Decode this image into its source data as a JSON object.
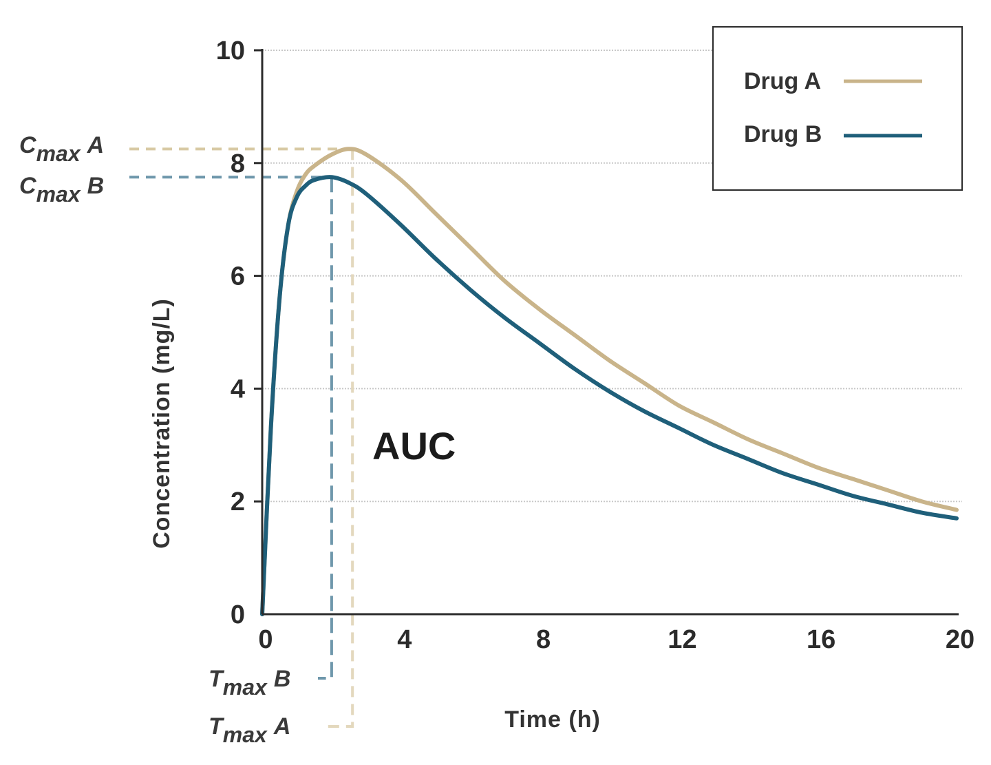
{
  "chart_data": {
    "type": "line",
    "title": "",
    "xlabel": "Time (h)",
    "ylabel": "Concentration (mg/L)",
    "xlim": [
      0,
      20
    ],
    "ylim": [
      0,
      10
    ],
    "xticks": [
      "0",
      "4",
      "8",
      "12",
      "16",
      "20"
    ],
    "yticks": [
      "0",
      "2",
      "4",
      "6",
      "8",
      "10"
    ],
    "grid": "horizontal dotted",
    "legend_position": "top-right",
    "series": [
      {
        "name": "Drug A",
        "color": "#c9b48a",
        "x": [
          0,
          0.25,
          0.5,
          0.75,
          1,
          1.25,
          1.5,
          2,
          2.5,
          3,
          4,
          5,
          6,
          7,
          8,
          9,
          10,
          11,
          12,
          13,
          14,
          15,
          16,
          17,
          18,
          19,
          20
        ],
        "y": [
          0,
          3.3,
          5.6,
          6.9,
          7.5,
          7.8,
          7.95,
          8.15,
          8.25,
          8.15,
          7.7,
          7.1,
          6.5,
          5.9,
          5.4,
          4.95,
          4.5,
          4.1,
          3.7,
          3.4,
          3.1,
          2.85,
          2.6,
          2.4,
          2.2,
          2.0,
          1.85
        ]
      },
      {
        "name": "Drug B",
        "color": "#1f5f7a",
        "x": [
          0,
          0.25,
          0.5,
          0.75,
          1,
          1.25,
          1.5,
          2,
          2.5,
          3,
          4,
          5,
          6,
          7,
          8,
          9,
          10,
          11,
          12,
          13,
          14,
          15,
          16,
          17,
          18,
          19,
          20
        ],
        "y": [
          0,
          3.3,
          5.6,
          6.9,
          7.4,
          7.6,
          7.7,
          7.75,
          7.65,
          7.45,
          6.9,
          6.3,
          5.75,
          5.25,
          4.8,
          4.35,
          3.95,
          3.6,
          3.3,
          3.0,
          2.75,
          2.5,
          2.3,
          2.1,
          1.95,
          1.8,
          1.7
        ]
      }
    ],
    "annotations": {
      "cmax_a": {
        "main": "C",
        "sub": "max",
        "suffix": "A",
        "y": 8.25,
        "color": "#d8c9a4"
      },
      "cmax_b": {
        "main": "C",
        "sub": "max",
        "suffix": "B",
        "y": 7.75,
        "color": "#6e97ab"
      },
      "tmax_a": {
        "main": "T",
        "sub": "max",
        "suffix": "A",
        "x": 2.6,
        "color": "#e3d8bd"
      },
      "tmax_b": {
        "main": "T",
        "sub": "max",
        "suffix": "B",
        "x": 2.0,
        "color": "#6e97ab"
      },
      "auc": "AUC"
    }
  }
}
